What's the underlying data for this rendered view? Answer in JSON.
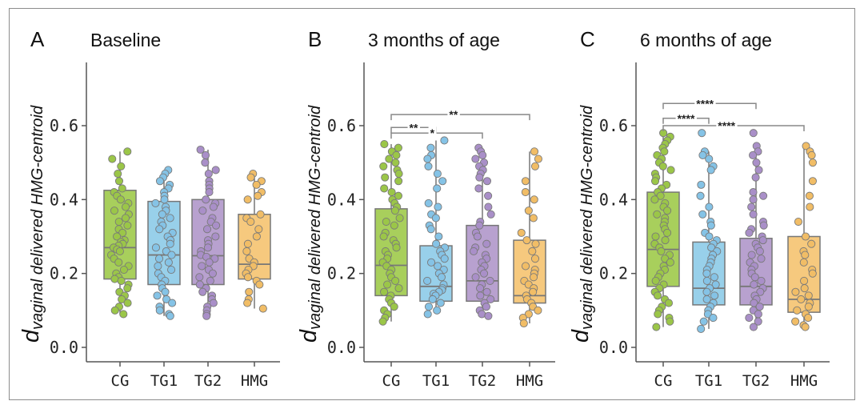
{
  "colors": {
    "CG": "#a8cf5c",
    "TG1": "#98d0ea",
    "TG2": "#b8a1cf",
    "HMG": "#f6c97e",
    "CG_point": "#9bc648",
    "TG1_point": "#85c3e6",
    "TG2_point": "#a98fc8",
    "HMG_point": "#f1bd66",
    "axis": "#555555",
    "box_edge": "#777777"
  },
  "chart_data": [
    {
      "type": "box",
      "panel_letter": "A",
      "title": "Baseline",
      "ylabel_main": "d",
      "ylabel_sub": "vaginal delivered HMG-centroid",
      "ylim": [
        0.0,
        0.75
      ],
      "yticks": [
        "0.0",
        "0.2",
        "0.4",
        "0.6"
      ],
      "ytick_values": [
        0.0,
        0.2,
        0.4,
        0.6
      ],
      "categories": [
        "CG",
        "TG1",
        "TG2",
        "HMG"
      ],
      "boxes": [
        {
          "name": "CG",
          "min": 0.09,
          "q1": 0.185,
          "median": 0.27,
          "q3": 0.425,
          "max": 0.53
        },
        {
          "name": "TG1",
          "min": 0.085,
          "q1": 0.17,
          "median": 0.25,
          "q3": 0.395,
          "max": 0.48
        },
        {
          "name": "TG2",
          "min": 0.085,
          "q1": 0.17,
          "median": 0.248,
          "q3": 0.4,
          "max": 0.535
        },
        {
          "name": "HMG",
          "min": 0.105,
          "q1": 0.185,
          "median": 0.225,
          "q3": 0.36,
          "max": 0.47
        }
      ],
      "points": {
        "CG": [
          0.53,
          0.51,
          0.49,
          0.47,
          0.45,
          0.43,
          0.42,
          0.41,
          0.4,
          0.39,
          0.38,
          0.37,
          0.36,
          0.35,
          0.34,
          0.33,
          0.32,
          0.31,
          0.3,
          0.29,
          0.285,
          0.28,
          0.275,
          0.27,
          0.265,
          0.26,
          0.25,
          0.24,
          0.23,
          0.22,
          0.21,
          0.2,
          0.19,
          0.185,
          0.18,
          0.17,
          0.16,
          0.15,
          0.14,
          0.13,
          0.12,
          0.11,
          0.1,
          0.09
        ],
        "TG1": [
          0.48,
          0.47,
          0.46,
          0.45,
          0.44,
          0.43,
          0.42,
          0.41,
          0.4,
          0.39,
          0.38,
          0.37,
          0.36,
          0.35,
          0.34,
          0.33,
          0.32,
          0.31,
          0.3,
          0.29,
          0.28,
          0.27,
          0.26,
          0.25,
          0.24,
          0.23,
          0.22,
          0.21,
          0.2,
          0.19,
          0.18,
          0.17,
          0.16,
          0.15,
          0.14,
          0.13,
          0.12,
          0.11,
          0.1,
          0.09,
          0.085
        ],
        "TG2": [
          0.535,
          0.52,
          0.5,
          0.48,
          0.47,
          0.45,
          0.44,
          0.43,
          0.42,
          0.4,
          0.39,
          0.38,
          0.37,
          0.35,
          0.34,
          0.33,
          0.32,
          0.3,
          0.29,
          0.28,
          0.27,
          0.26,
          0.25,
          0.245,
          0.24,
          0.23,
          0.22,
          0.21,
          0.2,
          0.19,
          0.18,
          0.17,
          0.16,
          0.15,
          0.14,
          0.13,
          0.12,
          0.11,
          0.1,
          0.09,
          0.085
        ],
        "HMG": [
          0.47,
          0.46,
          0.45,
          0.44,
          0.42,
          0.41,
          0.4,
          0.36,
          0.35,
          0.34,
          0.32,
          0.3,
          0.28,
          0.26,
          0.24,
          0.23,
          0.22,
          0.21,
          0.2,
          0.19,
          0.18,
          0.17,
          0.15,
          0.13,
          0.12,
          0.105
        ]
      },
      "significance": []
    },
    {
      "type": "box",
      "panel_letter": "B",
      "title": "3 months of age",
      "ylabel_main": "d",
      "ylabel_sub": "vaginal delivered HMG-centroid",
      "ylim": [
        0.0,
        0.75
      ],
      "yticks": [
        "0.0",
        "0.2",
        "0.4",
        "0.6"
      ],
      "ytick_values": [
        0.0,
        0.2,
        0.4,
        0.6
      ],
      "categories": [
        "CG",
        "TG1",
        "TG2",
        "HMG"
      ],
      "boxes": [
        {
          "name": "CG",
          "min": 0.07,
          "q1": 0.14,
          "median": 0.222,
          "q3": 0.375,
          "max": 0.55
        },
        {
          "name": "TG1",
          "min": 0.09,
          "q1": 0.125,
          "median": 0.165,
          "q3": 0.275,
          "max": 0.56
        },
        {
          "name": "TG2",
          "min": 0.085,
          "q1": 0.125,
          "median": 0.18,
          "q3": 0.33,
          "max": 0.54
        },
        {
          "name": "HMG",
          "min": 0.065,
          "q1": 0.12,
          "median": 0.14,
          "q3": 0.29,
          "max": 0.53
        }
      ],
      "points": {
        "CG": [
          0.55,
          0.54,
          0.53,
          0.52,
          0.51,
          0.5,
          0.49,
          0.48,
          0.47,
          0.46,
          0.45,
          0.43,
          0.42,
          0.41,
          0.4,
          0.39,
          0.38,
          0.37,
          0.35,
          0.34,
          0.33,
          0.31,
          0.3,
          0.29,
          0.28,
          0.27,
          0.26,
          0.25,
          0.24,
          0.23,
          0.22,
          0.21,
          0.2,
          0.19,
          0.18,
          0.17,
          0.16,
          0.15,
          0.14,
          0.13,
          0.12,
          0.11,
          0.1,
          0.09,
          0.08,
          0.07
        ],
        "TG1": [
          0.56,
          0.54,
          0.52,
          0.51,
          0.49,
          0.47,
          0.45,
          0.43,
          0.39,
          0.38,
          0.36,
          0.35,
          0.33,
          0.32,
          0.3,
          0.28,
          0.27,
          0.26,
          0.25,
          0.24,
          0.23,
          0.22,
          0.21,
          0.2,
          0.19,
          0.18,
          0.17,
          0.16,
          0.155,
          0.15,
          0.145,
          0.14,
          0.13,
          0.12,
          0.11,
          0.1,
          0.09
        ],
        "TG2": [
          0.54,
          0.53,
          0.52,
          0.51,
          0.5,
          0.49,
          0.48,
          0.47,
          0.46,
          0.45,
          0.43,
          0.41,
          0.38,
          0.36,
          0.34,
          0.33,
          0.31,
          0.3,
          0.28,
          0.27,
          0.26,
          0.25,
          0.24,
          0.23,
          0.22,
          0.21,
          0.2,
          0.19,
          0.18,
          0.17,
          0.16,
          0.15,
          0.14,
          0.13,
          0.12,
          0.11,
          0.1,
          0.09,
          0.085
        ],
        "HMG": [
          0.53,
          0.51,
          0.49,
          0.45,
          0.42,
          0.4,
          0.37,
          0.35,
          0.31,
          0.29,
          0.28,
          0.26,
          0.24,
          0.22,
          0.21,
          0.2,
          0.19,
          0.18,
          0.17,
          0.16,
          0.15,
          0.14,
          0.13,
          0.12,
          0.11,
          0.1,
          0.09,
          0.08,
          0.065
        ]
      },
      "significance": [
        {
          "from": 0,
          "to": 3,
          "label": "**",
          "y": 0.63
        },
        {
          "from": 0,
          "to": 1,
          "label": "**",
          "y": 0.595
        },
        {
          "from": 0,
          "to": 2,
          "label": "*",
          "y": 0.58
        }
      ]
    },
    {
      "type": "box",
      "panel_letter": "C",
      "title": "6 months of age",
      "ylabel_main": "d",
      "ylabel_sub": "vaginal delivered HMG-centroid",
      "ylim": [
        0.0,
        0.75
      ],
      "yticks": [
        "0.0",
        "0.2",
        "0.4",
        "0.6"
      ],
      "ytick_values": [
        0.0,
        0.2,
        0.4,
        0.6
      ],
      "categories": [
        "CG",
        "TG1",
        "TG2",
        "HMG"
      ],
      "boxes": [
        {
          "name": "CG",
          "min": 0.055,
          "q1": 0.165,
          "median": 0.265,
          "q3": 0.42,
          "max": 0.58
        },
        {
          "name": "TG1",
          "min": 0.05,
          "q1": 0.115,
          "median": 0.16,
          "q3": 0.285,
          "max": 0.53
        },
        {
          "name": "TG2",
          "min": 0.055,
          "q1": 0.115,
          "median": 0.165,
          "q3": 0.295,
          "max": 0.545
        },
        {
          "name": "HMG",
          "min": 0.055,
          "q1": 0.095,
          "median": 0.13,
          "q3": 0.3,
          "max": 0.545
        }
      ],
      "points": {
        "CG": [
          0.58,
          0.57,
          0.56,
          0.55,
          0.54,
          0.53,
          0.52,
          0.51,
          0.5,
          0.49,
          0.48,
          0.47,
          0.46,
          0.45,
          0.44,
          0.43,
          0.42,
          0.41,
          0.4,
          0.39,
          0.38,
          0.37,
          0.36,
          0.35,
          0.34,
          0.33,
          0.32,
          0.31,
          0.3,
          0.29,
          0.28,
          0.27,
          0.26,
          0.25,
          0.24,
          0.23,
          0.22,
          0.21,
          0.2,
          0.19,
          0.18,
          0.17,
          0.16,
          0.15,
          0.14,
          0.13,
          0.12,
          0.11,
          0.1,
          0.09,
          0.08,
          0.07,
          0.055
        ],
        "TG1": [
          0.58,
          0.53,
          0.52,
          0.51,
          0.49,
          0.48,
          0.44,
          0.41,
          0.38,
          0.36,
          0.34,
          0.33,
          0.31,
          0.3,
          0.29,
          0.28,
          0.27,
          0.26,
          0.25,
          0.24,
          0.23,
          0.22,
          0.21,
          0.2,
          0.19,
          0.18,
          0.17,
          0.16,
          0.15,
          0.14,
          0.13,
          0.12,
          0.11,
          0.1,
          0.09,
          0.08,
          0.07,
          0.05
        ],
        "TG2": [
          0.58,
          0.545,
          0.53,
          0.52,
          0.5,
          0.48,
          0.46,
          0.42,
          0.41,
          0.4,
          0.38,
          0.36,
          0.34,
          0.33,
          0.32,
          0.31,
          0.3,
          0.29,
          0.28,
          0.27,
          0.26,
          0.25,
          0.24,
          0.23,
          0.22,
          0.21,
          0.2,
          0.19,
          0.18,
          0.17,
          0.16,
          0.15,
          0.14,
          0.13,
          0.12,
          0.11,
          0.1,
          0.09,
          0.08,
          0.07,
          0.055
        ],
        "HMG": [
          0.545,
          0.53,
          0.52,
          0.5,
          0.45,
          0.41,
          0.38,
          0.34,
          0.3,
          0.28,
          0.26,
          0.25,
          0.23,
          0.21,
          0.2,
          0.18,
          0.16,
          0.15,
          0.14,
          0.13,
          0.12,
          0.11,
          0.1,
          0.09,
          0.08,
          0.07,
          0.06,
          0.055
        ]
      },
      "significance": [
        {
          "from": 0,
          "to": 2,
          "label": "****",
          "y": 0.66
        },
        {
          "from": 0,
          "to": 1,
          "label": "****",
          "y": 0.62
        },
        {
          "from": 0,
          "to": 3,
          "label": "****",
          "y": 0.6
        }
      ]
    }
  ]
}
